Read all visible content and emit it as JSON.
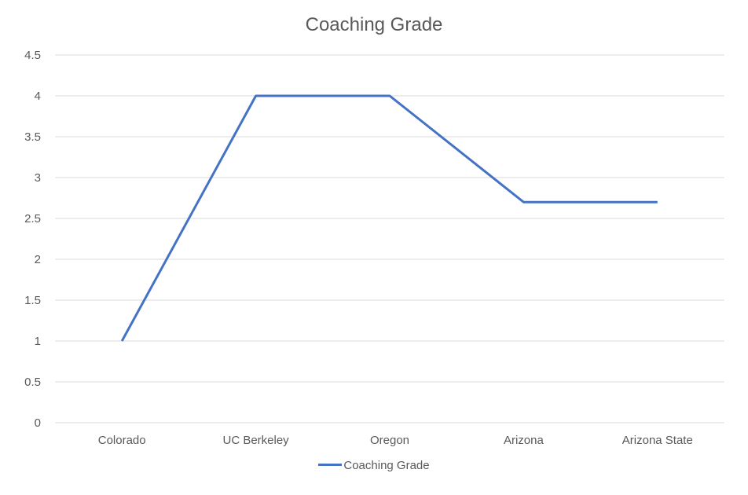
{
  "chart_data": {
    "type": "line",
    "title": "Coaching Grade",
    "categories": [
      "Colorado",
      "UC Berkeley",
      "Oregon",
      "Arizona",
      "Arizona State"
    ],
    "series": [
      {
        "name": "Coaching Grade",
        "values": [
          1,
          4,
          4,
          2.7,
          2.7
        ],
        "color": "#4472c4"
      }
    ],
    "ylim": [
      0,
      4.5
    ],
    "yticks": [
      "0",
      "0.5",
      "1",
      "1.5",
      "2",
      "2.5",
      "3",
      "3.5",
      "4",
      "4.5"
    ],
    "grid": true,
    "legend_position": "bottom"
  }
}
